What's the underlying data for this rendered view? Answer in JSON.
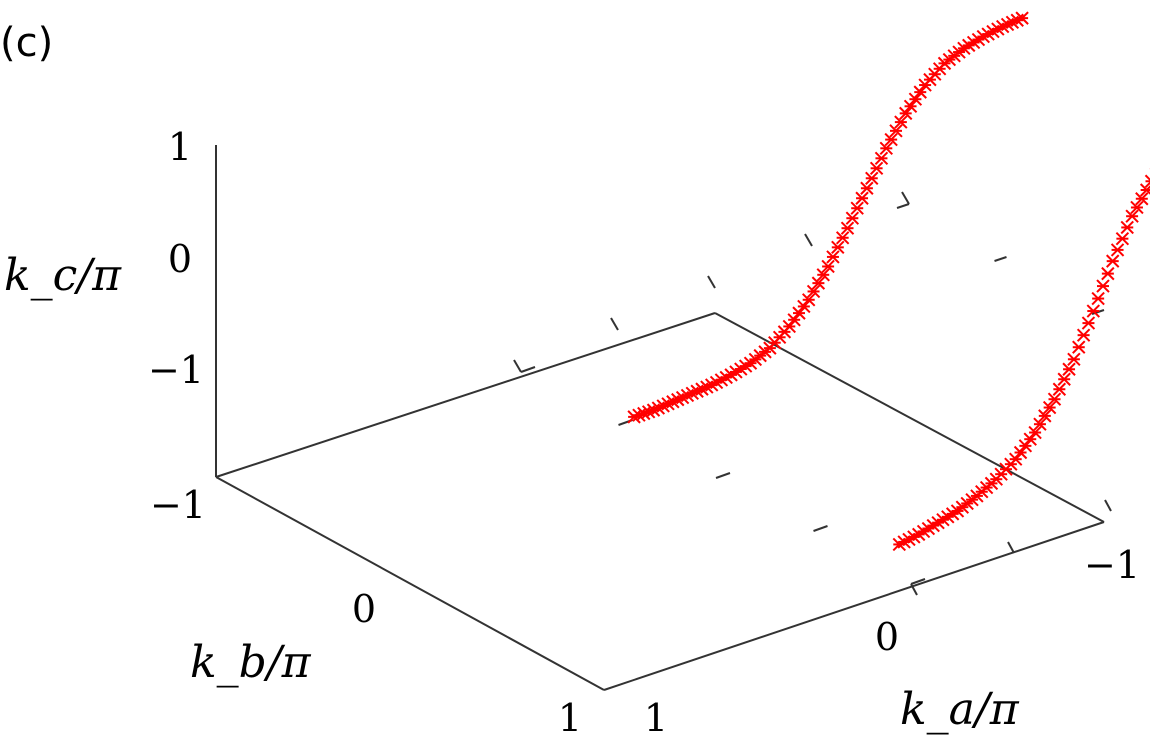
{
  "panel_label": "(c)",
  "colors": {
    "series": "#ff0000",
    "axes": "#333333"
  },
  "chart_data": {
    "type": "scatter",
    "projection": "3d",
    "title": "",
    "xlabel": "k_a/π",
    "ylabel": "k_b/π",
    "zlabel": "k_c/π",
    "xlim": [
      -1,
      1
    ],
    "ylim": [
      -1,
      1
    ],
    "zlim": [
      -1,
      1
    ],
    "x_ticks": [
      "−1",
      "0",
      "1"
    ],
    "y_ticks": [
      "−1",
      "0",
      "1"
    ],
    "z_ticks": [
      "−1",
      "0",
      "1"
    ],
    "marker": "x",
    "legend": "none",
    "series": [
      {
        "points": [
          [
            -1.0,
            -0.94,
            1.0
          ],
          [
            -0.9,
            -0.94,
            1.0
          ],
          [
            -0.8,
            -0.94,
            0.99
          ],
          [
            -0.7,
            -0.94,
            0.98
          ],
          [
            -0.6,
            -0.94,
            0.96
          ],
          [
            -0.5,
            -0.94,
            0.92
          ],
          [
            -0.4,
            -0.94,
            0.85
          ],
          [
            -0.3,
            -0.94,
            0.73
          ],
          [
            -0.2,
            -0.94,
            0.57
          ],
          [
            -0.1,
            -0.94,
            0.35
          ],
          [
            0.0,
            -0.94,
            0.1
          ],
          [
            0.1,
            -0.94,
            -0.14
          ],
          [
            0.2,
            -0.94,
            -0.33
          ],
          [
            0.3,
            -0.94,
            -0.48
          ],
          [
            0.4,
            -0.94,
            -0.59
          ],
          [
            0.5,
            -0.94,
            -0.66
          ],
          [
            0.6,
            -0.94,
            -0.71
          ],
          [
            0.7,
            -0.94,
            -0.75
          ],
          [
            0.8,
            -0.94,
            -0.77
          ],
          [
            0.9,
            -0.94,
            -0.79
          ],
          [
            1.0,
            -0.94,
            -0.8
          ]
        ]
      },
      {
        "points": [
          [
            -1.0,
            0.42,
            0.49
          ],
          [
            -0.9,
            0.42,
            0.49
          ],
          [
            -0.8,
            0.42,
            0.48
          ],
          [
            -0.7,
            0.42,
            0.46
          ],
          [
            -0.6,
            0.42,
            0.42
          ],
          [
            -0.5,
            0.42,
            0.34
          ],
          [
            -0.4,
            0.42,
            0.22
          ],
          [
            -0.3,
            0.42,
            0.06
          ],
          [
            -0.2,
            0.42,
            -0.13
          ],
          [
            -0.1,
            0.42,
            -0.32
          ],
          [
            0.0,
            0.42,
            -0.5
          ],
          [
            0.1,
            0.42,
            -0.65
          ],
          [
            0.2,
            0.42,
            -0.76
          ],
          [
            0.3,
            0.42,
            -0.84
          ],
          [
            0.4,
            0.42,
            -0.88
          ],
          [
            0.5,
            0.42,
            -0.9
          ],
          [
            0.6,
            0.42,
            -0.91
          ],
          [
            0.7,
            0.42,
            -0.91
          ],
          [
            0.8,
            0.42,
            -0.91
          ],
          [
            0.9,
            0.42,
            -0.91
          ],
          [
            1.0,
            0.42,
            -0.9
          ]
        ]
      }
    ]
  }
}
